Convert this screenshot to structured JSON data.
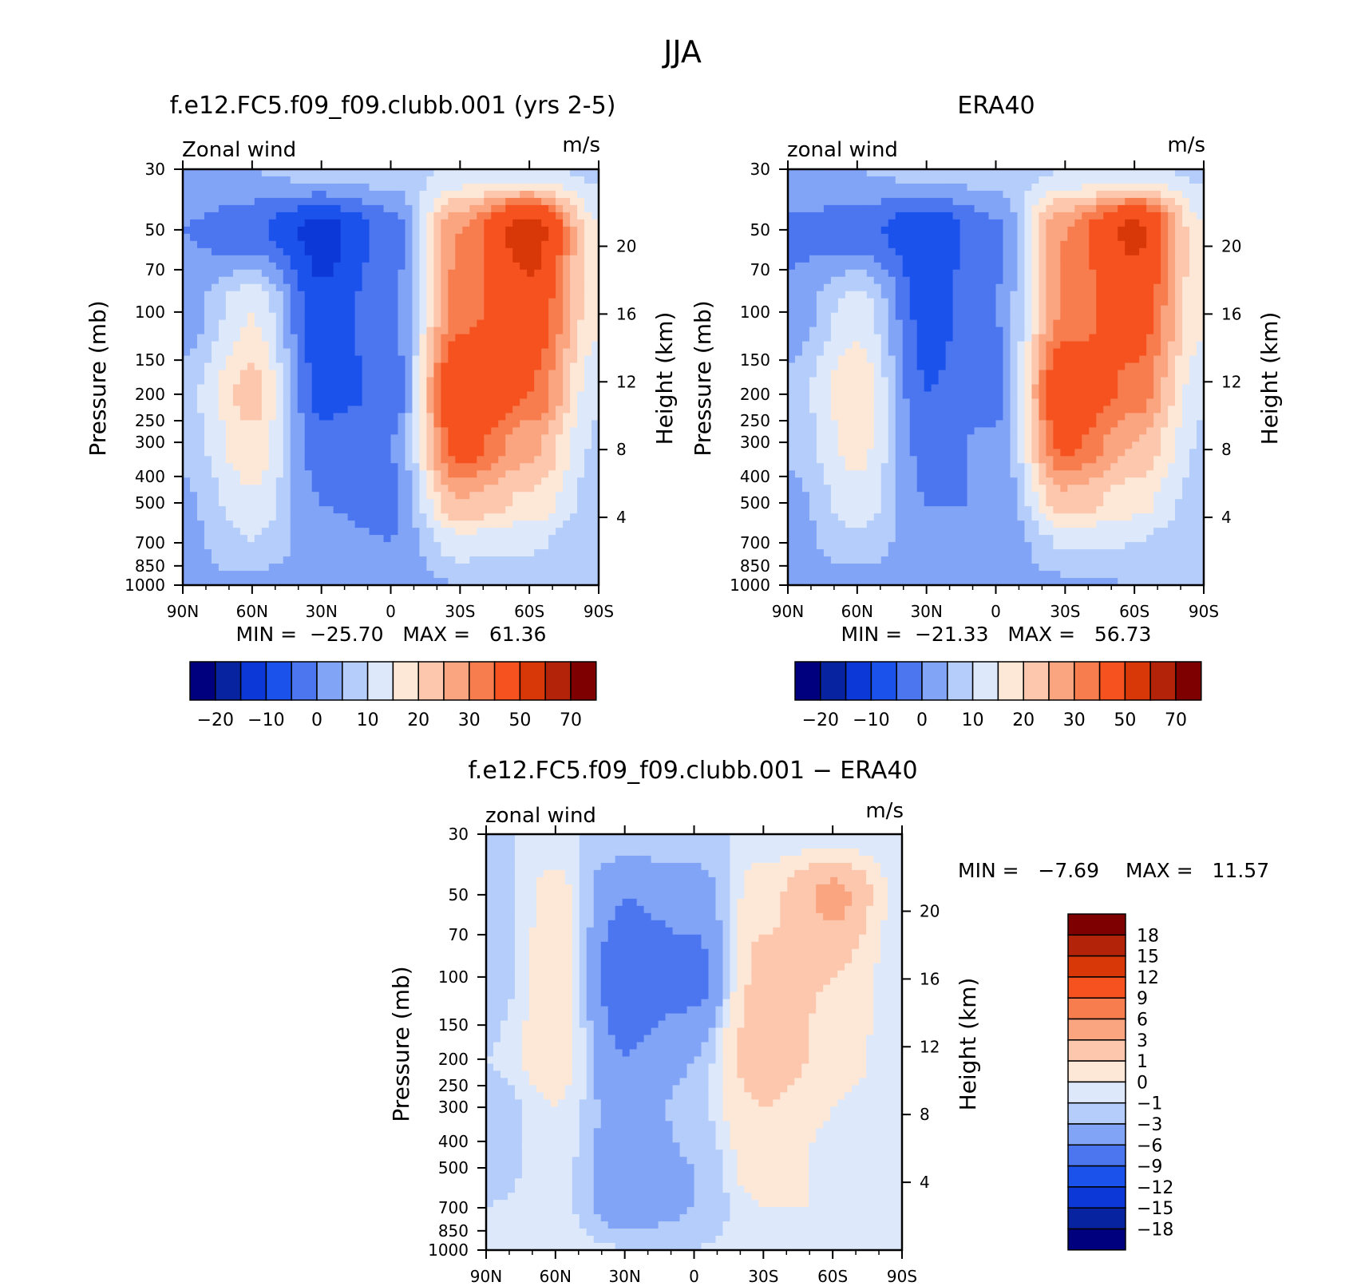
{
  "figure": {
    "title": "JJA"
  },
  "chart_data": [
    {
      "type": "heatmap",
      "title": "f.e12.FC5.f09_f09.clubb.001 (yrs 2-5)",
      "left_label": "Zonal wind",
      "units": "m/s",
      "xlabel": "",
      "ylabel": "Pressure (mb)",
      "ylabel_right": "Height (km)",
      "x_ticks": [
        "90N",
        "60N",
        "30N",
        "0",
        "30S",
        "60S",
        "90S"
      ],
      "y_ticks": [
        "30",
        "50",
        "70",
        "100",
        "150",
        "200",
        "250",
        "300",
        "400",
        "500",
        "700",
        "850",
        "1000"
      ],
      "y_ticks_right": [
        "20",
        "16",
        "12",
        "8",
        "4"
      ],
      "stats": "MIN =  −25.70   MAX =   61.36",
      "lat": [
        -90,
        -60,
        -30,
        0,
        30,
        60,
        90
      ],
      "pressure": [
        30,
        50,
        100,
        200,
        300,
        500,
        700,
        1000
      ],
      "values": [
        [
          0,
          0,
          2,
          3,
          6,
          6,
          4
        ],
        [
          -5,
          -9,
          -17,
          -8,
          25,
          45,
          10
        ],
        [
          -3,
          10,
          -14,
          -6,
          28,
          36,
          11
        ],
        [
          3,
          17,
          -12,
          -9,
          40,
          30,
          6
        ],
        [
          2,
          14,
          -8,
          -5,
          34,
          22,
          4
        ],
        [
          -1,
          9,
          -5,
          -6,
          20,
          14,
          2
        ],
        [
          -2,
          5,
          -4,
          -5,
          8,
          6,
          0
        ],
        [
          0,
          -2,
          -3,
          -3,
          0,
          0,
          0
        ]
      ],
      "colorbar_levels": [
        "−20",
        "−10",
        "0",
        "10",
        "20",
        "30",
        "50",
        "70"
      ],
      "colors": [
        "#00007f",
        "#0823a0",
        "#0d38d8",
        "#1c52ec",
        "#4b76f0",
        "#82a4f6",
        "#b4cdfa",
        "#dde9fb",
        "#fde8d8",
        "#fcc7ad",
        "#fba480",
        "#f77c4e",
        "#f5521f",
        "#d83708",
        "#b3230a",
        "#7f0000"
      ]
    },
    {
      "type": "heatmap",
      "title": "ERA40",
      "left_label": "zonal wind",
      "units": "m/s",
      "xlabel": "",
      "ylabel": "Pressure (mb)",
      "ylabel_right": "Height (km)",
      "x_ticks": [
        "90N",
        "60N",
        "30N",
        "0",
        "30S",
        "60S",
        "90S"
      ],
      "y_ticks": [
        "30",
        "50",
        "70",
        "100",
        "150",
        "200",
        "250",
        "300",
        "400",
        "500",
        "700",
        "850",
        "1000"
      ],
      "y_ticks_right": [
        "20",
        "16",
        "12",
        "8",
        "4"
      ],
      "stats": "MIN =  −21.33   MAX =   56.73",
      "lat": [
        -90,
        -60,
        -30,
        0,
        30,
        60,
        90
      ],
      "pressure": [
        30,
        50,
        100,
        200,
        300,
        500,
        700,
        1000
      ],
      "values": [
        [
          0,
          0,
          2,
          3,
          5,
          6,
          4
        ],
        [
          -6,
          -8,
          -14,
          -6,
          25,
          42,
          10
        ],
        [
          -4,
          8,
          -12,
          -5,
          26,
          34,
          11
        ],
        [
          2,
          14,
          -10,
          -7,
          38,
          28,
          6
        ],
        [
          1,
          12,
          -7,
          -4,
          32,
          20,
          4
        ],
        [
          -2,
          8,
          -5,
          -5,
          18,
          12,
          2
        ],
        [
          -3,
          4,
          -4,
          -5,
          6,
          5,
          0
        ],
        [
          -1,
          -3,
          -3,
          -3,
          -1,
          0,
          0
        ]
      ],
      "colorbar_levels": [
        "−20",
        "−10",
        "0",
        "10",
        "20",
        "30",
        "50",
        "70"
      ],
      "colors": [
        "#00007f",
        "#0823a0",
        "#0d38d8",
        "#1c52ec",
        "#4b76f0",
        "#82a4f6",
        "#b4cdfa",
        "#dde9fb",
        "#fde8d8",
        "#fcc7ad",
        "#fba480",
        "#f77c4e",
        "#f5521f",
        "#d83708",
        "#b3230a",
        "#7f0000"
      ]
    },
    {
      "type": "heatmap",
      "title": "f.e12.FC5.f09_f09.clubb.001 − ERA40",
      "left_label": "zonal wind",
      "units": "m/s",
      "xlabel": "",
      "ylabel": "Pressure (mb)",
      "ylabel_right": "Height (km)",
      "x_ticks": [
        "90N",
        "60N",
        "30N",
        "0",
        "30S",
        "60S",
        "90S"
      ],
      "y_ticks": [
        "30",
        "50",
        "70",
        "100",
        "150",
        "200",
        "250",
        "300",
        "400",
        "500",
        "700",
        "850",
        "1000"
      ],
      "y_ticks_right": [
        "20",
        "16",
        "12",
        "8",
        "4"
      ],
      "stats_min": "MIN =   −7.69",
      "stats_max": "MAX =   11.57",
      "lat": [
        -90,
        -60,
        -30,
        0,
        30,
        60,
        90
      ],
      "pressure": [
        30,
        50,
        100,
        200,
        300,
        500,
        700,
        1000
      ],
      "values": [
        [
          0,
          0,
          0,
          0,
          0,
          0,
          0
        ],
        [
          -1,
          1.5,
          -3,
          -2,
          2,
          7,
          0
        ],
        [
          -1,
          2,
          -5,
          -4,
          4,
          3,
          0
        ],
        [
          0,
          2,
          -3,
          -1,
          5,
          2,
          0
        ],
        [
          -1,
          1,
          -2,
          -0.5,
          3,
          1,
          0
        ],
        [
          -0.5,
          0.5,
          -2,
          -1,
          2,
          0.5,
          0
        ],
        [
          0,
          0.5,
          -2,
          -1,
          1,
          1,
          0
        ],
        [
          0,
          0.5,
          0,
          0,
          0.5,
          0,
          0
        ]
      ],
      "colorbar_levels": [
        "18",
        "15",
        "12",
        "9",
        "6",
        "3",
        "1",
        "0",
        "−1",
        "−3",
        "−6",
        "−9",
        "−12",
        "−15",
        "−18"
      ],
      "colors": [
        "#00007f",
        "#0823a0",
        "#0d38d8",
        "#1c52ec",
        "#4b76f0",
        "#82a4f6",
        "#b4cdfa",
        "#dde9fb",
        "#fde8d8",
        "#fcc7ad",
        "#fba480",
        "#f77c4e",
        "#f5521f",
        "#d83708",
        "#b3230a",
        "#7f0000"
      ]
    }
  ]
}
